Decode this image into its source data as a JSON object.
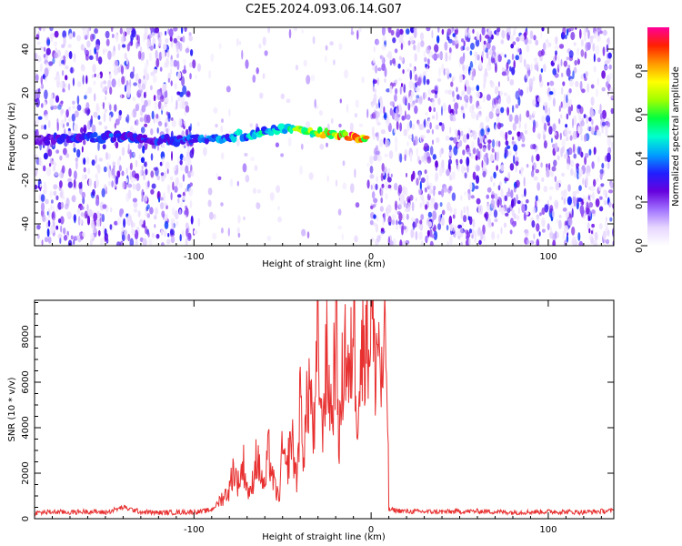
{
  "figure": {
    "title": "C2E5.2024.093.06.14.G07"
  },
  "chart_data": [
    {
      "type": "heatmap",
      "xlabel": "Height of straight line (km)",
      "ylabel": "Frequency (Hz)",
      "xlim": [
        -190,
        137
      ],
      "ylim": [
        -50,
        50
      ],
      "xticks": [
        -100,
        0,
        100
      ],
      "yticks": [
        -40,
        -20,
        0,
        20,
        40
      ],
      "colorbar": {
        "label": "Normalized spectral amplitude",
        "range": [
          0,
          1
        ],
        "ticks": [
          "0.0",
          "0.2",
          "0.4",
          "0.6",
          "0.8"
        ],
        "colors": [
          "#ffffff",
          "#e6d6ff",
          "#a070ff",
          "#6600dd",
          "#2020ff",
          "#00a0ff",
          "#00ffcc",
          "#00ff40",
          "#a0ff00",
          "#ffff00",
          "#ff9900",
          "#ff2000",
          "#ff0099"
        ]
      },
      "noise_regions": [
        {
          "x": [
            -190,
            -100
          ],
          "density": "high"
        },
        {
          "x": [
            -100,
            0
          ],
          "density": "low"
        },
        {
          "x": [
            0,
            137
          ],
          "density": "high"
        }
      ],
      "ridge": {
        "x": [
          -190,
          -170,
          -150,
          -130,
          -110,
          -90,
          -70,
          -55,
          -40,
          -25,
          -10,
          -2
        ],
        "frequency": [
          -2,
          -1,
          0,
          -1,
          -2,
          -1,
          1,
          3,
          3,
          1,
          0,
          -1
        ],
        "amplitude": [
          0.3,
          0.35,
          0.4,
          0.35,
          0.4,
          0.45,
          0.5,
          0.55,
          0.7,
          0.85,
          0.95,
          0.9
        ]
      },
      "grid": false,
      "legend": "colorbar-right"
    },
    {
      "type": "line",
      "xlabel": "Height of straight line (km)",
      "ylabel": "SNR (10 * v/v)",
      "xlim": [
        -190,
        137
      ],
      "ylim": [
        0,
        9600
      ],
      "xticks": [
        -100,
        0,
        100
      ],
      "yticks": [
        0,
        2000,
        4000,
        6000,
        8000
      ],
      "grid": false,
      "series": [
        {
          "color": "#e83030",
          "x": [
            -190,
            -180,
            -170,
            -160,
            -150,
            -140,
            -130,
            -120,
            -110,
            -100,
            -95,
            -90,
            -85,
            -80,
            -78,
            -75,
            -72,
            -70,
            -68,
            -65,
            -62,
            -60,
            -58,
            -55,
            -52,
            -50,
            -48,
            -45,
            -42,
            -40,
            -38,
            -35,
            -32,
            -30,
            -28,
            -25,
            -22,
            -20,
            -18,
            -15,
            -12,
            -10,
            -8,
            -5,
            -3,
            -1,
            0,
            2,
            4,
            6,
            8,
            9,
            10,
            20,
            40,
            60,
            80,
            100,
            120,
            137
          ],
          "values": [
            250,
            300,
            280,
            320,
            270,
            500,
            300,
            260,
            280,
            300,
            320,
            400,
            800,
            1200,
            2100,
            1500,
            2300,
            1300,
            1000,
            2600,
            1800,
            1200,
            2900,
            1500,
            800,
            3000,
            1800,
            3500,
            1600,
            5000,
            2800,
            5800,
            3300,
            7800,
            3800,
            6600,
            4200,
            8200,
            3200,
            7600,
            5200,
            9100,
            4800,
            6900,
            8500,
            7200,
            9600,
            6300,
            7800,
            5500,
            7000,
            6200,
            400,
            320,
            300,
            330,
            280,
            310,
            290,
            350
          ]
        }
      ]
    }
  ]
}
